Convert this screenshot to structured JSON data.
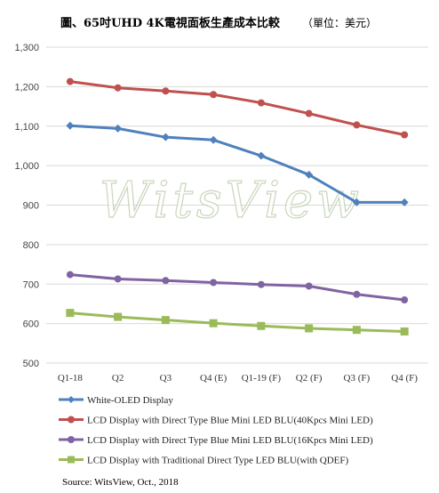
{
  "chart_data": {
    "type": "line",
    "title": "圖、65吋UHD 4K電視面板生產成本比較",
    "title_unit": "（單位：美元）",
    "categories": [
      "Q1-18",
      "Q2",
      "Q3",
      "Q4 (E)",
      "Q1-19 (F)",
      "Q2 (F)",
      "Q3 (F)",
      "Q4 (F)"
    ],
    "ylim": [
      500,
      1300
    ],
    "yticks": [
      "500",
      "600",
      "700",
      "800",
      "900",
      "1,000",
      "1,100",
      "1,200",
      "1,300"
    ],
    "grid": true,
    "legend_position": "bottom",
    "series": [
      {
        "name": "White-OLED Display",
        "color": "#4f81bd",
        "marker": "diamond",
        "values": [
          1101,
          1094,
          1072,
          1065,
          1025,
          977,
          907,
          907
        ]
      },
      {
        "name": "LCD Display with Direct Type Blue Mini LED BLU(40Kpcs Mini LED)",
        "color": "#c0504d",
        "marker": "circle",
        "values": [
          1213,
          1197,
          1189,
          1180,
          1159,
          1132,
          1103,
          1078
        ]
      },
      {
        "name": "LCD Display with Direct Type Blue Mini LED BLU(16Kpcs Mini LED)",
        "color": "#8064a2",
        "marker": "circle",
        "values": [
          724,
          713,
          709,
          704,
          699,
          695,
          674,
          660
        ]
      },
      {
        "name": "LCD Display with Traditional Direct Type LED BLU(with QDEF)",
        "color": "#9bbb59",
        "marker": "square",
        "values": [
          627,
          617,
          609,
          601,
          594,
          588,
          584,
          580
        ]
      }
    ],
    "watermark": "WitsView",
    "source": "Source: WitsView, Oct., 2018"
  }
}
